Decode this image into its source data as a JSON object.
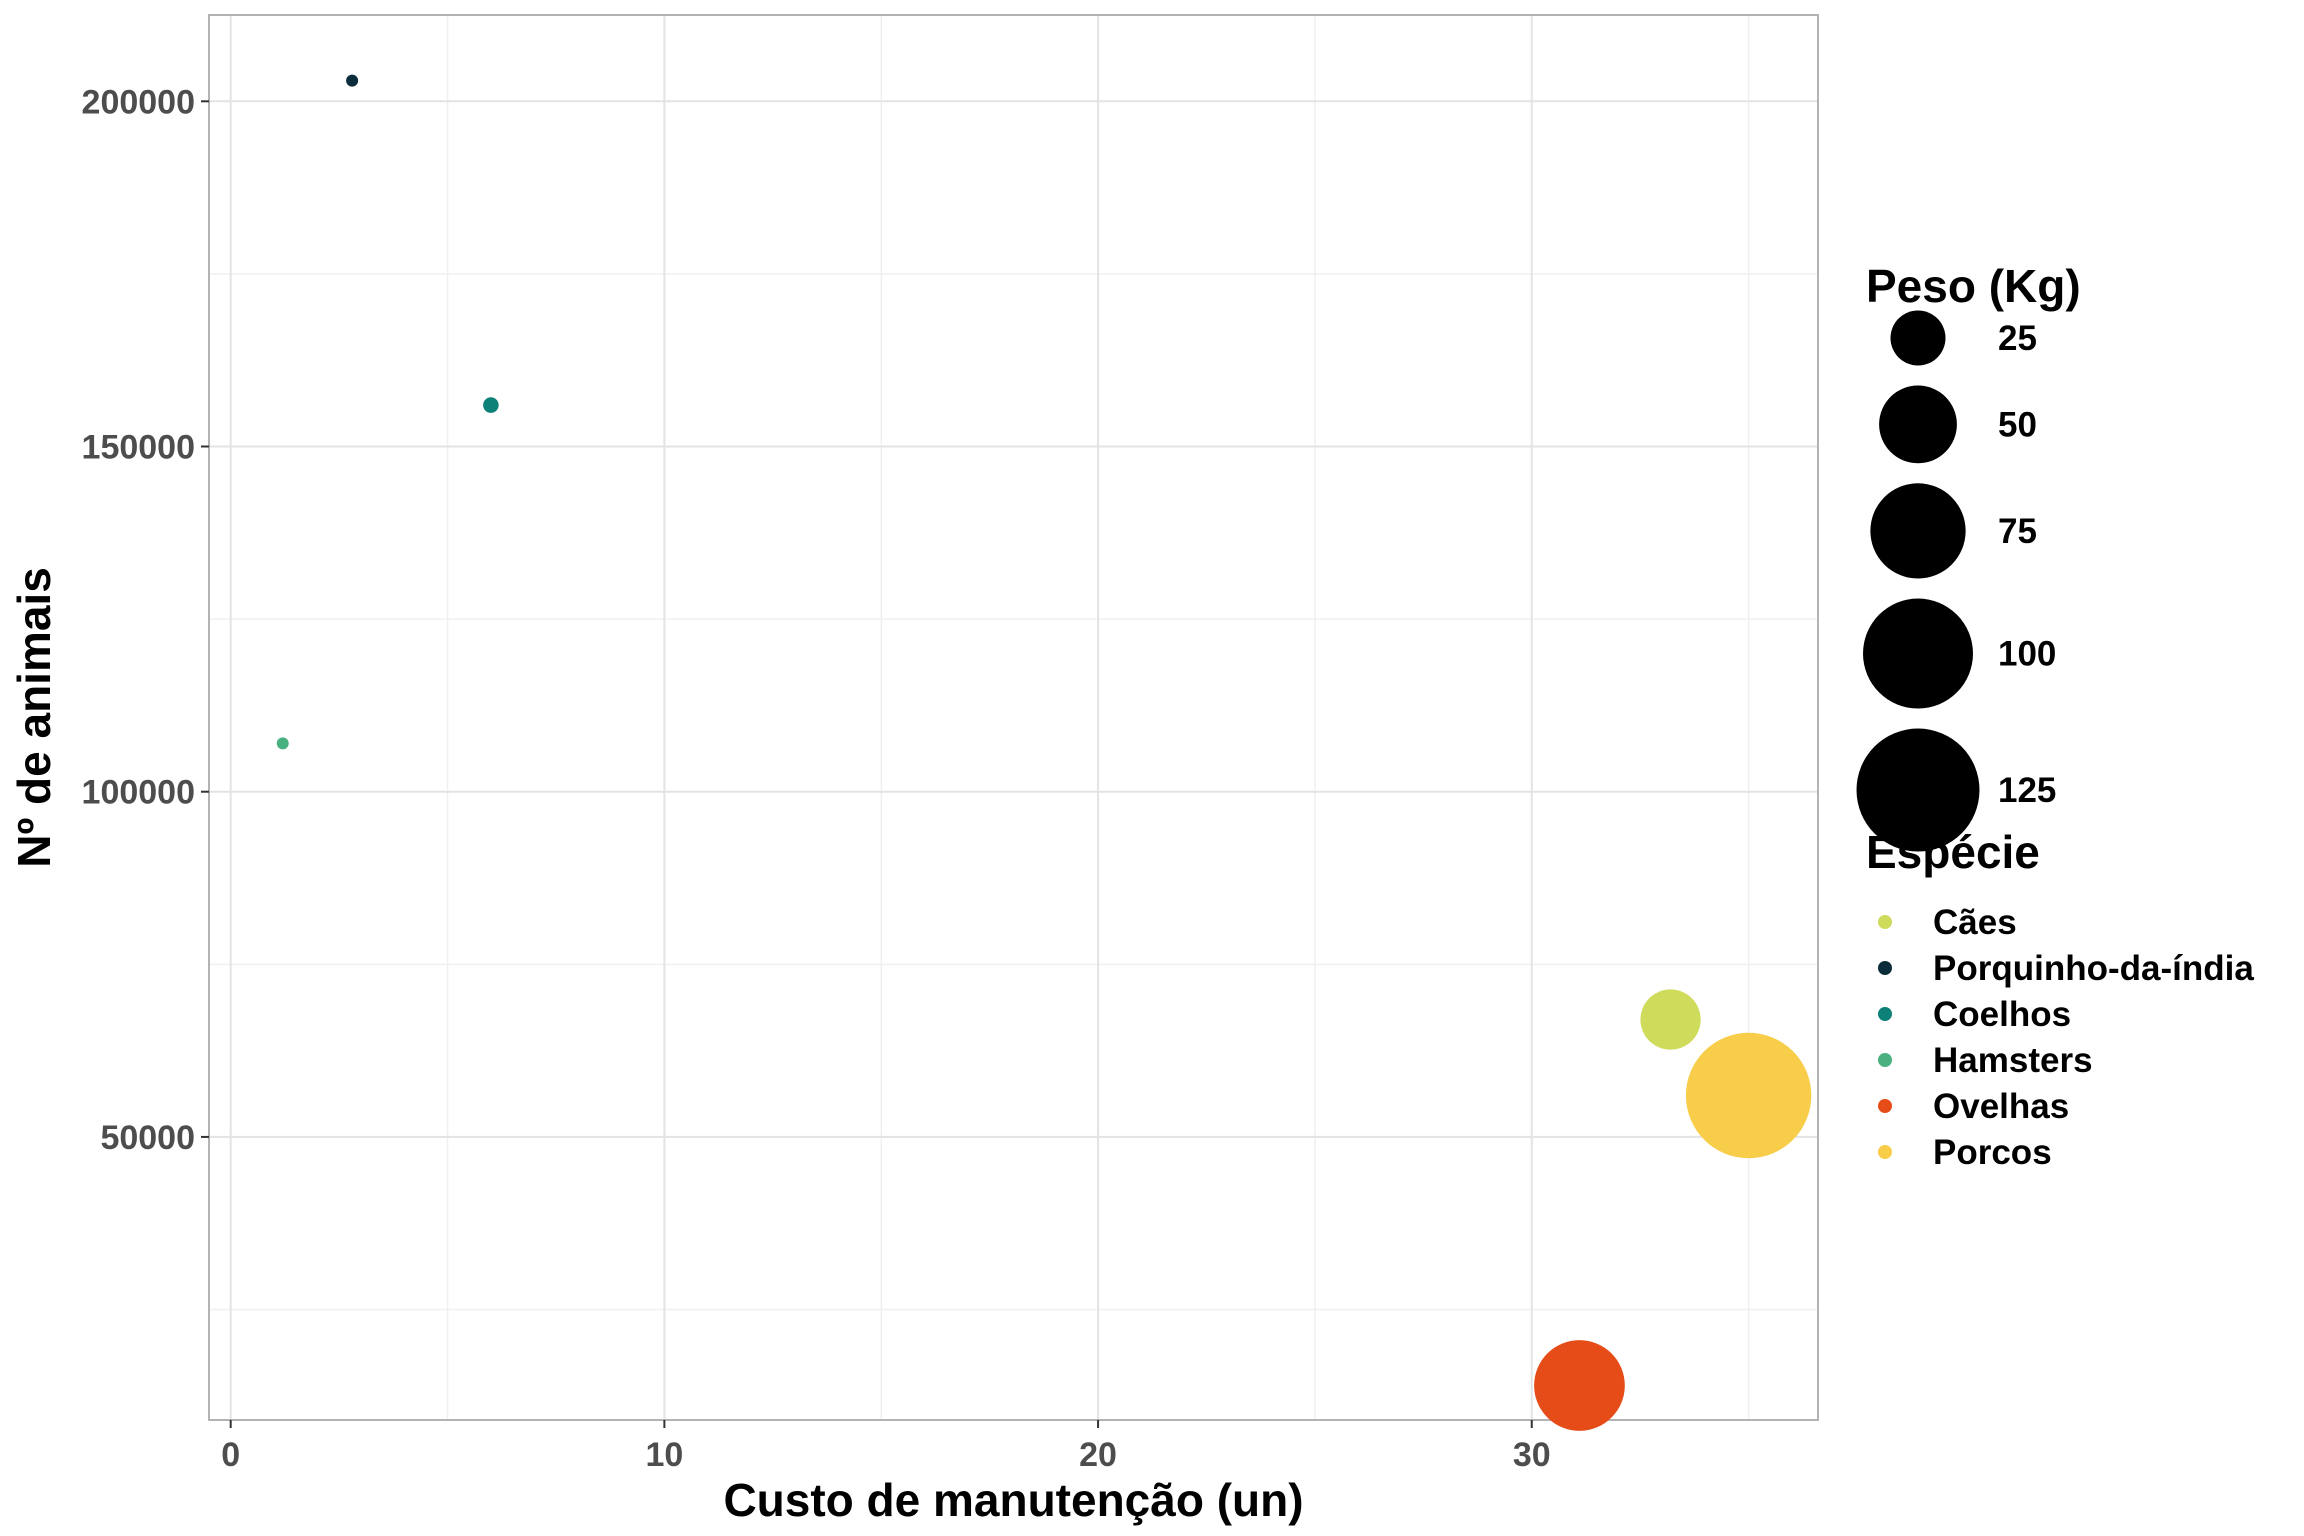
{
  "chart_data": {
    "type": "scatter",
    "xlabel": "Custo de manutenção (un)",
    "ylabel": "Nº de animais",
    "xlim": [
      -0.5,
      36.6
    ],
    "ylim": [
      9000,
      212500
    ],
    "x_ticks": [
      0,
      10,
      20,
      30
    ],
    "y_ticks": [
      50000,
      100000,
      150000,
      200000
    ],
    "x_tick_labels": [
      "0",
      "10",
      "20",
      "30"
    ],
    "y_tick_labels": [
      "50000",
      "100000",
      "150000",
      "200000"
    ],
    "grid": true,
    "size_legend": {
      "title": "Peso (Kg)",
      "entries": [
        {
          "label": "25",
          "value": 25
        },
        {
          "label": "50",
          "value": 50
        },
        {
          "label": "75",
          "value": 75
        },
        {
          "label": "100",
          "value": 100
        },
        {
          "label": "125",
          "value": 125
        }
      ]
    },
    "color_legend": {
      "title": "Espécie",
      "placement": "right"
    },
    "series": [
      {
        "name": "Cães",
        "color": "#cfdb5a",
        "x": 33.2,
        "y": 67000,
        "size": 30
      },
      {
        "name": "Porquinho-da-índia",
        "color": "#0b2c3a",
        "x": 2.8,
        "y": 203000,
        "size": 1
      },
      {
        "name": "Coelhos",
        "color": "#0d8078",
        "x": 6.0,
        "y": 156000,
        "size": 2
      },
      {
        "name": "Hamsters",
        "color": "#49b17f",
        "x": 1.2,
        "y": 107000,
        "size": 0.2
      },
      {
        "name": "Ovelhas",
        "color": "#e54c18",
        "x": 31.1,
        "y": 14000,
        "size": 68
      },
      {
        "name": "Porcos",
        "color": "#f8cd4a",
        "x": 35.0,
        "y": 56000,
        "size": 130
      }
    ]
  }
}
